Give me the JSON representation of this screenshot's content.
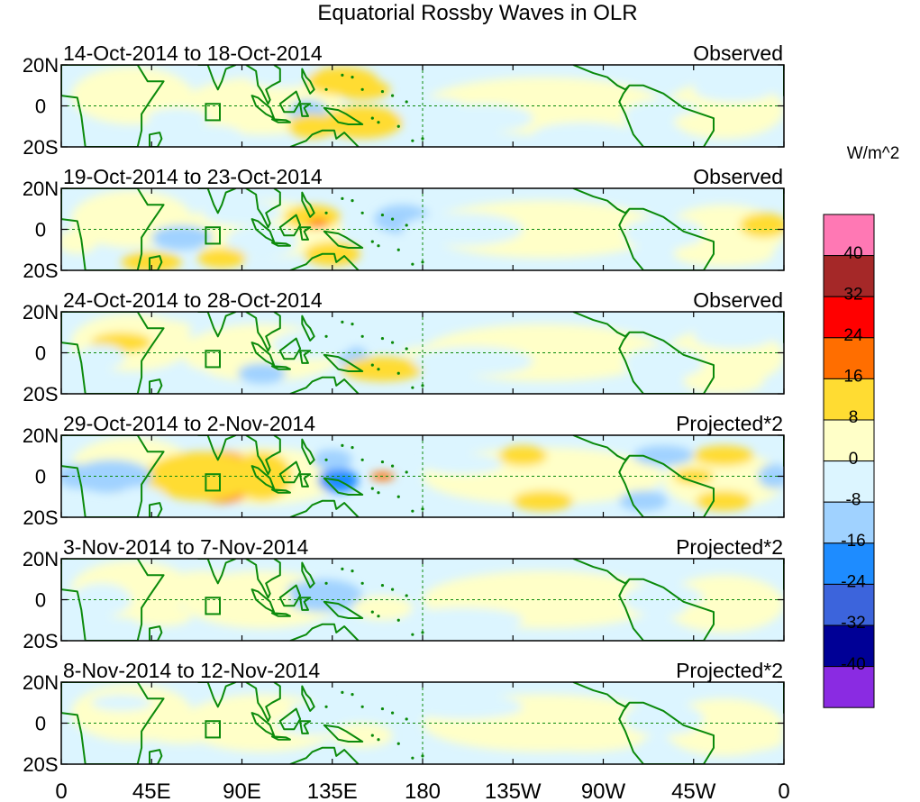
{
  "chart_data": {
    "type": "heatmap",
    "title": "Equatorial Rossby Waves in OLR",
    "colorbar_unit": "W/m^2",
    "levels": [
      -40,
      -32,
      -24,
      -16,
      -8,
      0,
      8,
      16,
      24,
      32,
      40
    ],
    "level_labels": [
      "40",
      "32",
      "24",
      "16",
      "8",
      "0",
      "-8",
      "-16",
      "-24",
      "-32",
      "-40"
    ],
    "colors": [
      "#8a2be2",
      "#000096",
      "#3c64dc",
      "#1e8cff",
      "#a0d2ff",
      "#dcf5ff",
      "#ffffc8",
      "#ffdc32",
      "#ff6e00",
      "#ff0000",
      "#a52828",
      "#ff78b4"
    ],
    "coast_color": "#0b8a0b",
    "x_tick_labels": [
      "0",
      "45E",
      "90E",
      "135E",
      "180",
      "135W",
      "90W",
      "45W",
      "0"
    ],
    "x_range": [
      0,
      360
    ],
    "y_tick_labels": [
      "20N",
      "0",
      "20S"
    ],
    "y_range": [
      -20,
      20
    ],
    "panels": [
      {
        "period": "14-Oct-2014 to 18-Oct-2014",
        "kind": "Observed",
        "blobs": [
          [
            110,
            15,
            18,
            6,
            -8
          ],
          [
            123,
            -3,
            10,
            6,
            -14
          ],
          [
            150,
            -8,
            20,
            8,
            10
          ],
          [
            125,
            -10,
            12,
            6,
            8
          ],
          [
            140,
            12,
            18,
            7,
            8
          ],
          [
            58,
            -6,
            15,
            5,
            -8
          ],
          [
            70,
            -14,
            20,
            5,
            -8
          ],
          [
            185,
            -2,
            18,
            6,
            -6
          ],
          [
            210,
            -6,
            25,
            7,
            -6
          ],
          [
            260,
            -14,
            25,
            6,
            -6
          ],
          [
            300,
            -5,
            20,
            8,
            -8
          ],
          [
            330,
            -8,
            25,
            6,
            6
          ],
          [
            335,
            8,
            20,
            6,
            -6
          ],
          [
            50,
            8,
            15,
            5,
            6
          ],
          [
            150,
            8,
            14,
            5,
            10
          ]
        ]
      },
      {
        "period": "19-Oct-2014 to 23-Oct-2014",
        "kind": "Observed",
        "blobs": [
          [
            125,
            6,
            14,
            6,
            10
          ],
          [
            128,
            3,
            5,
            2,
            22
          ],
          [
            135,
            -12,
            14,
            6,
            10
          ],
          [
            100,
            -6,
            18,
            8,
            -8
          ],
          [
            90,
            8,
            20,
            6,
            -6
          ],
          [
            60,
            -4,
            15,
            6,
            -10
          ],
          [
            45,
            -16,
            15,
            5,
            8
          ],
          [
            80,
            -14,
            12,
            5,
            8
          ],
          [
            170,
            5,
            14,
            7,
            -12
          ],
          [
            200,
            0,
            30,
            8,
            -6
          ],
          [
            300,
            -2,
            20,
            8,
            -8
          ],
          [
            330,
            -12,
            25,
            6,
            6
          ],
          [
            350,
            2,
            12,
            6,
            8
          ],
          [
            8,
            -6,
            10,
            6,
            6
          ]
        ]
      },
      {
        "period": "24-Oct-2014 to 28-Oct-2014",
        "kind": "Observed",
        "blobs": [
          [
            145,
            -2,
            8,
            5,
            -16
          ],
          [
            100,
            -10,
            12,
            5,
            -10
          ],
          [
            125,
            4,
            20,
            7,
            -8
          ],
          [
            160,
            -8,
            20,
            6,
            8
          ],
          [
            180,
            0,
            10,
            3,
            6
          ],
          [
            30,
            5,
            15,
            5,
            8
          ],
          [
            50,
            12,
            15,
            4,
            6
          ],
          [
            60,
            -12,
            15,
            5,
            -8
          ],
          [
            20,
            -2,
            12,
            6,
            -8
          ],
          [
            205,
            -4,
            30,
            7,
            -6
          ],
          [
            300,
            -5,
            20,
            8,
            -6
          ],
          [
            335,
            8,
            20,
            6,
            -8
          ],
          [
            330,
            -14,
            20,
            6,
            6
          ]
        ]
      },
      {
        "period": "29-Oct-2014 to 2-Nov-2014",
        "kind": "Projected*2",
        "blobs": [
          [
            80,
            8,
            12,
            4,
            16
          ],
          [
            80,
            -9,
            12,
            4,
            16
          ],
          [
            70,
            0,
            28,
            12,
            8
          ],
          [
            100,
            0,
            15,
            12,
            8
          ],
          [
            138,
            -2,
            10,
            6,
            -24
          ],
          [
            135,
            8,
            10,
            5,
            -16
          ],
          [
            160,
            0,
            6,
            2,
            16
          ],
          [
            25,
            0,
            20,
            8,
            -10
          ],
          [
            8,
            0,
            10,
            6,
            -12
          ],
          [
            40,
            -10,
            12,
            5,
            -8
          ],
          [
            200,
            6,
            20,
            5,
            -6
          ],
          [
            230,
            10,
            12,
            5,
            8
          ],
          [
            240,
            -12,
            15,
            5,
            8
          ],
          [
            290,
            -12,
            12,
            5,
            -12
          ],
          [
            300,
            10,
            15,
            5,
            -12
          ],
          [
            315,
            0,
            10,
            4,
            8
          ],
          [
            330,
            -12,
            14,
            5,
            8
          ],
          [
            330,
            10,
            15,
            5,
            8
          ],
          [
            355,
            0,
            8,
            6,
            -12
          ]
        ]
      },
      {
        "period": "3-Nov-2014 to 7-Nov-2014",
        "kind": "Projected*2",
        "blobs": [
          [
            130,
            2,
            20,
            8,
            -10
          ],
          [
            100,
            0,
            15,
            8,
            6
          ],
          [
            160,
            -4,
            15,
            6,
            6
          ],
          [
            70,
            10,
            15,
            4,
            6
          ],
          [
            50,
            -8,
            15,
            5,
            6
          ],
          [
            20,
            0,
            15,
            8,
            -6
          ],
          [
            200,
            -10,
            30,
            6,
            -4
          ],
          [
            240,
            6,
            30,
            6,
            4
          ],
          [
            300,
            0,
            20,
            8,
            -6
          ],
          [
            330,
            -6,
            20,
            6,
            6
          ]
        ]
      },
      {
        "period": "8-Nov-2014 to 12-Nov-2014",
        "kind": "Projected*2",
        "blobs": [
          [
            125,
            2,
            20,
            8,
            -8
          ],
          [
            100,
            6,
            15,
            6,
            6
          ],
          [
            150,
            -6,
            15,
            6,
            6
          ],
          [
            60,
            -4,
            20,
            6,
            6
          ],
          [
            30,
            10,
            15,
            4,
            -6
          ],
          [
            200,
            8,
            30,
            6,
            -4
          ],
          [
            260,
            -8,
            30,
            6,
            4
          ],
          [
            300,
            2,
            20,
            8,
            -6
          ],
          [
            340,
            -8,
            20,
            6,
            6
          ]
        ]
      }
    ]
  }
}
